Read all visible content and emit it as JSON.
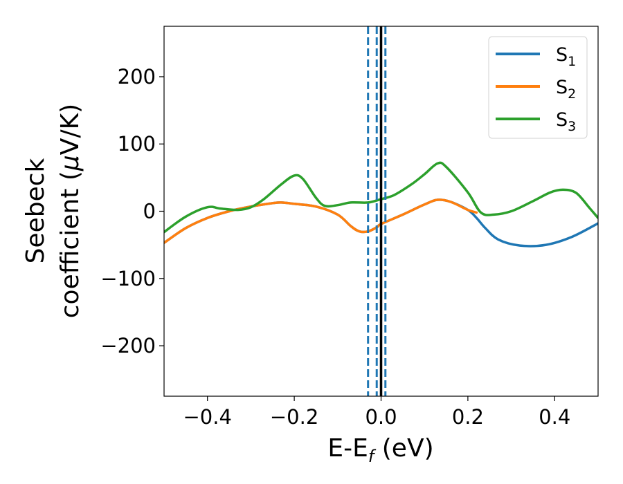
{
  "chart_data": {
    "type": "line",
    "xlabel": {
      "main": "E-E",
      "sub": "f",
      "unit": " (eV)"
    },
    "ylabel": {
      "line1": "Seebeck",
      "line2_main": "coefficient  (",
      "line2_mu": "μ",
      "line2_unit": "V/K)"
    },
    "xlim": [
      -0.5,
      0.5
    ],
    "ylim": [
      -275,
      275
    ],
    "xticks": [
      -0.4,
      -0.2,
      0.0,
      0.2,
      0.4
    ],
    "xtick_labels": [
      "−0.4",
      "−0.2",
      "0.0",
      "0.2",
      "0.4"
    ],
    "yticks": [
      -200,
      -100,
      0,
      100,
      200
    ],
    "ytick_labels": [
      "−200",
      "−100",
      "0",
      "100",
      "200"
    ],
    "grid": false,
    "legend_position": "top-right",
    "vlines": [
      {
        "x": -0.03,
        "style": "dashed",
        "color": "#1f77b4"
      },
      {
        "x": -0.01,
        "style": "dashed",
        "color": "#1f77b4"
      },
      {
        "x": 0.01,
        "style": "dashed",
        "color": "#1f77b4"
      },
      {
        "x": 0.0,
        "style": "solid",
        "color": "#000000"
      }
    ],
    "series": [
      {
        "name": "S",
        "sub": "1",
        "color": "#1f77b4",
        "points": [
          [
            -0.5,
            -47
          ],
          [
            -0.45,
            -25
          ],
          [
            -0.4,
            -10
          ],
          [
            -0.35,
            0
          ],
          [
            -0.3,
            7
          ],
          [
            -0.25,
            12
          ],
          [
            -0.23,
            13
          ],
          [
            -0.2,
            11
          ],
          [
            -0.15,
            7
          ],
          [
            -0.1,
            -5
          ],
          [
            -0.07,
            -22
          ],
          [
            -0.05,
            -30
          ],
          [
            -0.03,
            -30
          ],
          [
            -0.01,
            -24
          ],
          [
            0.0,
            -19
          ],
          [
            0.05,
            -5
          ],
          [
            0.1,
            10
          ],
          [
            0.13,
            17
          ],
          [
            0.16,
            14
          ],
          [
            0.2,
            2
          ],
          [
            0.22,
            -10
          ],
          [
            0.24,
            -25
          ],
          [
            0.27,
            -42
          ],
          [
            0.32,
            -51
          ],
          [
            0.38,
            -50
          ],
          [
            0.44,
            -38
          ],
          [
            0.5,
            -18
          ]
        ]
      },
      {
        "name": "S",
        "sub": "2",
        "color": "#ff7f0e",
        "points": [
          [
            -0.5,
            -47
          ],
          [
            -0.45,
            -25
          ],
          [
            -0.4,
            -10
          ],
          [
            -0.35,
            0
          ],
          [
            -0.3,
            7
          ],
          [
            -0.25,
            12
          ],
          [
            -0.23,
            13
          ],
          [
            -0.2,
            11
          ],
          [
            -0.15,
            7
          ],
          [
            -0.1,
            -5
          ],
          [
            -0.07,
            -22
          ],
          [
            -0.05,
            -30
          ],
          [
            -0.03,
            -30
          ],
          [
            -0.01,
            -24
          ],
          [
            0.0,
            -19
          ],
          [
            0.05,
            -5
          ],
          [
            0.1,
            10
          ],
          [
            0.13,
            17
          ],
          [
            0.16,
            14
          ],
          [
            0.2,
            2
          ],
          [
            0.22,
            -2
          ]
        ]
      },
      {
        "name": "S",
        "sub": "3",
        "color": "#2ca02c",
        "points": [
          [
            -0.5,
            -31
          ],
          [
            -0.45,
            -8
          ],
          [
            -0.4,
            6
          ],
          [
            -0.37,
            4
          ],
          [
            -0.33,
            2
          ],
          [
            -0.3,
            6
          ],
          [
            -0.27,
            18
          ],
          [
            -0.23,
            40
          ],
          [
            -0.2,
            53
          ],
          [
            -0.18,
            48
          ],
          [
            -0.15,
            20
          ],
          [
            -0.13,
            8
          ],
          [
            -0.1,
            9
          ],
          [
            -0.07,
            13
          ],
          [
            -0.03,
            13
          ],
          [
            0.0,
            18
          ],
          [
            0.03,
            24
          ],
          [
            0.07,
            40
          ],
          [
            0.1,
            55
          ],
          [
            0.13,
            71
          ],
          [
            0.15,
            66
          ],
          [
            0.2,
            28
          ],
          [
            0.23,
            -2
          ],
          [
            0.26,
            -5
          ],
          [
            0.3,
            0
          ],
          [
            0.35,
            15
          ],
          [
            0.39,
            28
          ],
          [
            0.42,
            32
          ],
          [
            0.45,
            27
          ],
          [
            0.48,
            5
          ],
          [
            0.5,
            -10
          ]
        ]
      }
    ]
  }
}
